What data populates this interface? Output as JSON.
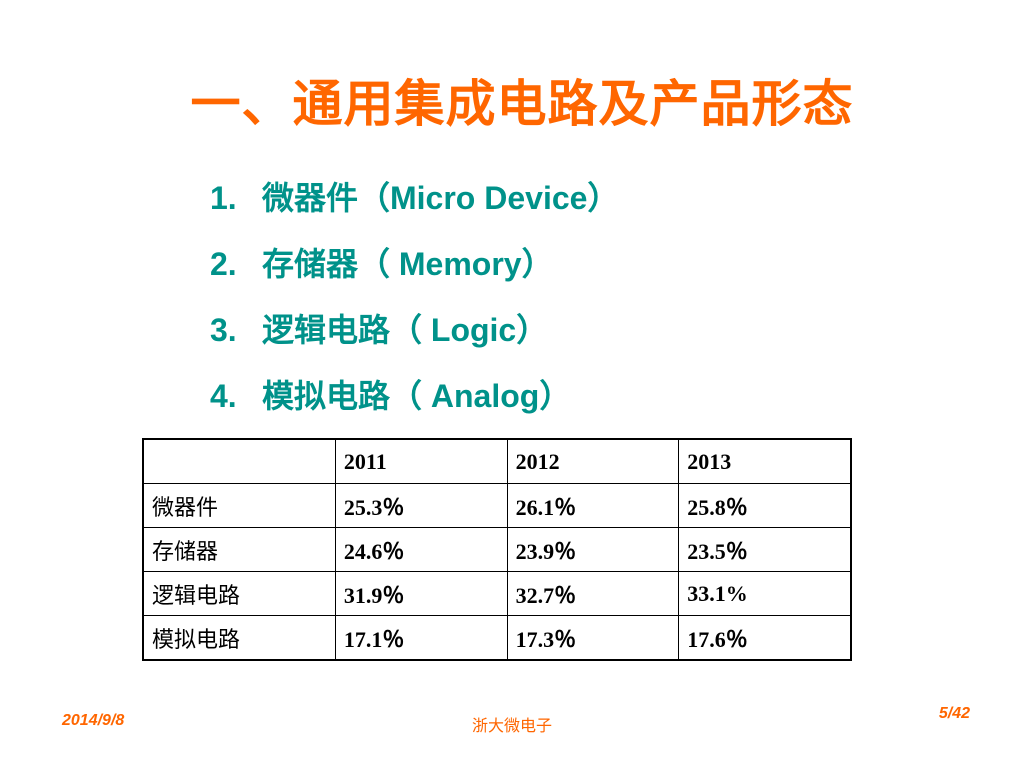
{
  "title": "一、通用集成电路及产品形态",
  "list": [
    {
      "num": "1.",
      "text": "微器件（Micro Device）"
    },
    {
      "num": "2.",
      "text": "存储器（ Memory）"
    },
    {
      "num": "3.",
      "text": "逻辑电路（ Logic）"
    },
    {
      "num": "4.",
      "text": "模拟电路（ Analog）"
    }
  ],
  "table": {
    "header": [
      "",
      "2011",
      "2012",
      "2013"
    ],
    "rows": [
      {
        "label": "微器件",
        "values": [
          "25.3％",
          "26.1％",
          "25.8％"
        ]
      },
      {
        "label": "存储器",
        "values": [
          "24.6％",
          "23.9％",
          "23.5％"
        ]
      },
      {
        "label": "逻辑电路",
        "values": [
          "31.9％",
          "32.7％",
          "33.1%"
        ]
      },
      {
        "label": "模拟电路",
        "values": [
          "17.1％",
          "17.3％",
          "17.6％"
        ]
      }
    ]
  },
  "footer": {
    "date": "2014/9/8",
    "center": "浙大微电子",
    "page": "5/42"
  },
  "colors": {
    "title": "#ff6600",
    "list": "#00928a",
    "footer": "#ff6600"
  }
}
